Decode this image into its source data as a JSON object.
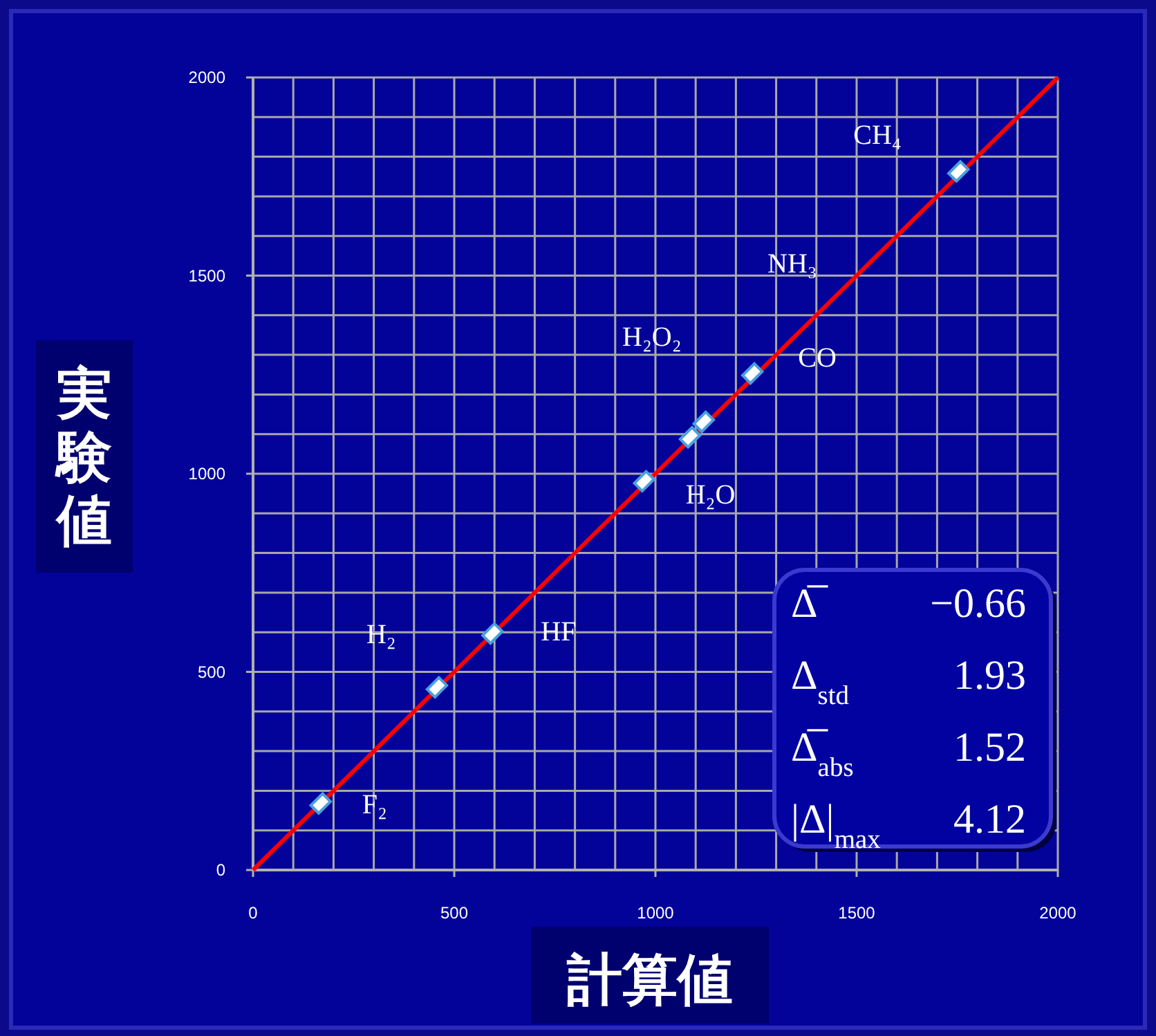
{
  "chart_data": {
    "type": "scatter",
    "xlabel": "計算値",
    "ylabel": "実験値",
    "xlim": [
      0,
      2000
    ],
    "ylim": [
      0,
      2000
    ],
    "xticks": [
      0,
      500,
      1000,
      1500,
      2000
    ],
    "yticks": [
      0,
      500,
      1000,
      1500,
      2000
    ],
    "grid": true,
    "marker": "diamond",
    "series": [
      {
        "color": "#ffffff",
        "x": [
          168,
          457,
          595,
          972,
          1086,
          1120,
          1241,
          1753
        ],
        "values": [
          168,
          461,
          597,
          981,
          1092,
          1131,
          1253,
          1763
        ]
      },
      {
        "type": "line",
        "color": "#ff0000",
        "marker": "none",
        "x": [
          0,
          2000
        ],
        "values": [
          0,
          2000
        ]
      }
    ],
    "annotations": [
      {
        "text": "F₂",
        "x": 168,
        "y": 168
      },
      {
        "text": "H₂",
        "x": 457,
        "y": 461
      },
      {
        "text": "HF",
        "x": 595,
        "y": 597
      },
      {
        "text": "H₂O",
        "x": 972,
        "y": 981
      },
      "H₂O₂",
      {
        "text": "CO",
        "x": 1241,
        "y": 1253
      },
      "NH₃",
      {
        "text": "CH₄",
        "x": 1753,
        "y": 1763
      },
      "Δ̅",
      "−0.66",
      "Δ$_{std}$",
      "1.93",
      "Δ̅$_{abs}$",
      "1.52",
      "|Δ|$_{max}$",
      "4.12"
    ]
  }
}
